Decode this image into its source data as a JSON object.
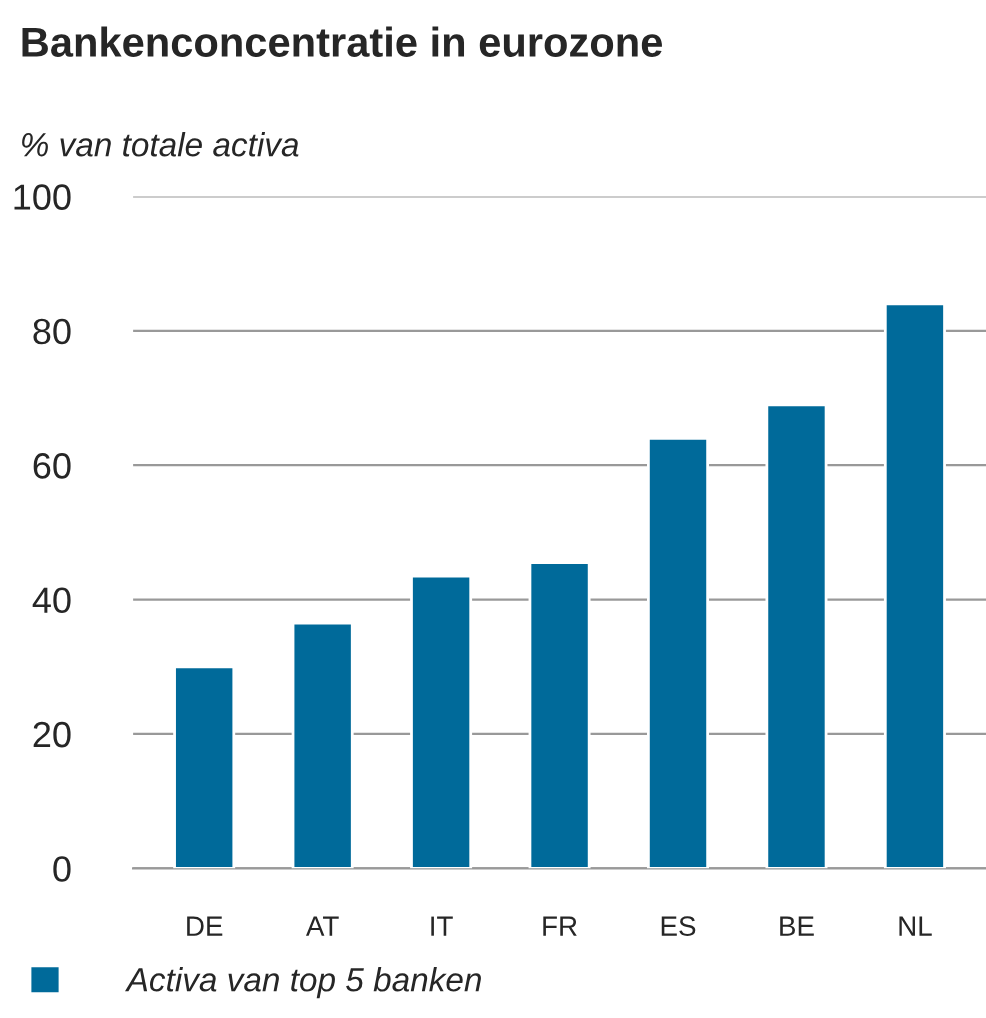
{
  "chart_data": {
    "type": "bar",
    "title": "Bankenconcentratie in eurozone",
    "ylabel": "% van totale activa",
    "categories": [
      "DE",
      "AT",
      "IT",
      "FR",
      "ES",
      "BE",
      "NL"
    ],
    "series": [
      {
        "name": "Activa van top 5 banken",
        "color": "#006a9a",
        "values": [
          30,
          36.5,
          43.5,
          45.5,
          64,
          69,
          84
        ]
      }
    ],
    "ylim": [
      0,
      100
    ],
    "yticks": [
      0,
      20,
      40,
      60,
      80,
      100
    ],
    "grid": "y",
    "legend": "bottom"
  }
}
